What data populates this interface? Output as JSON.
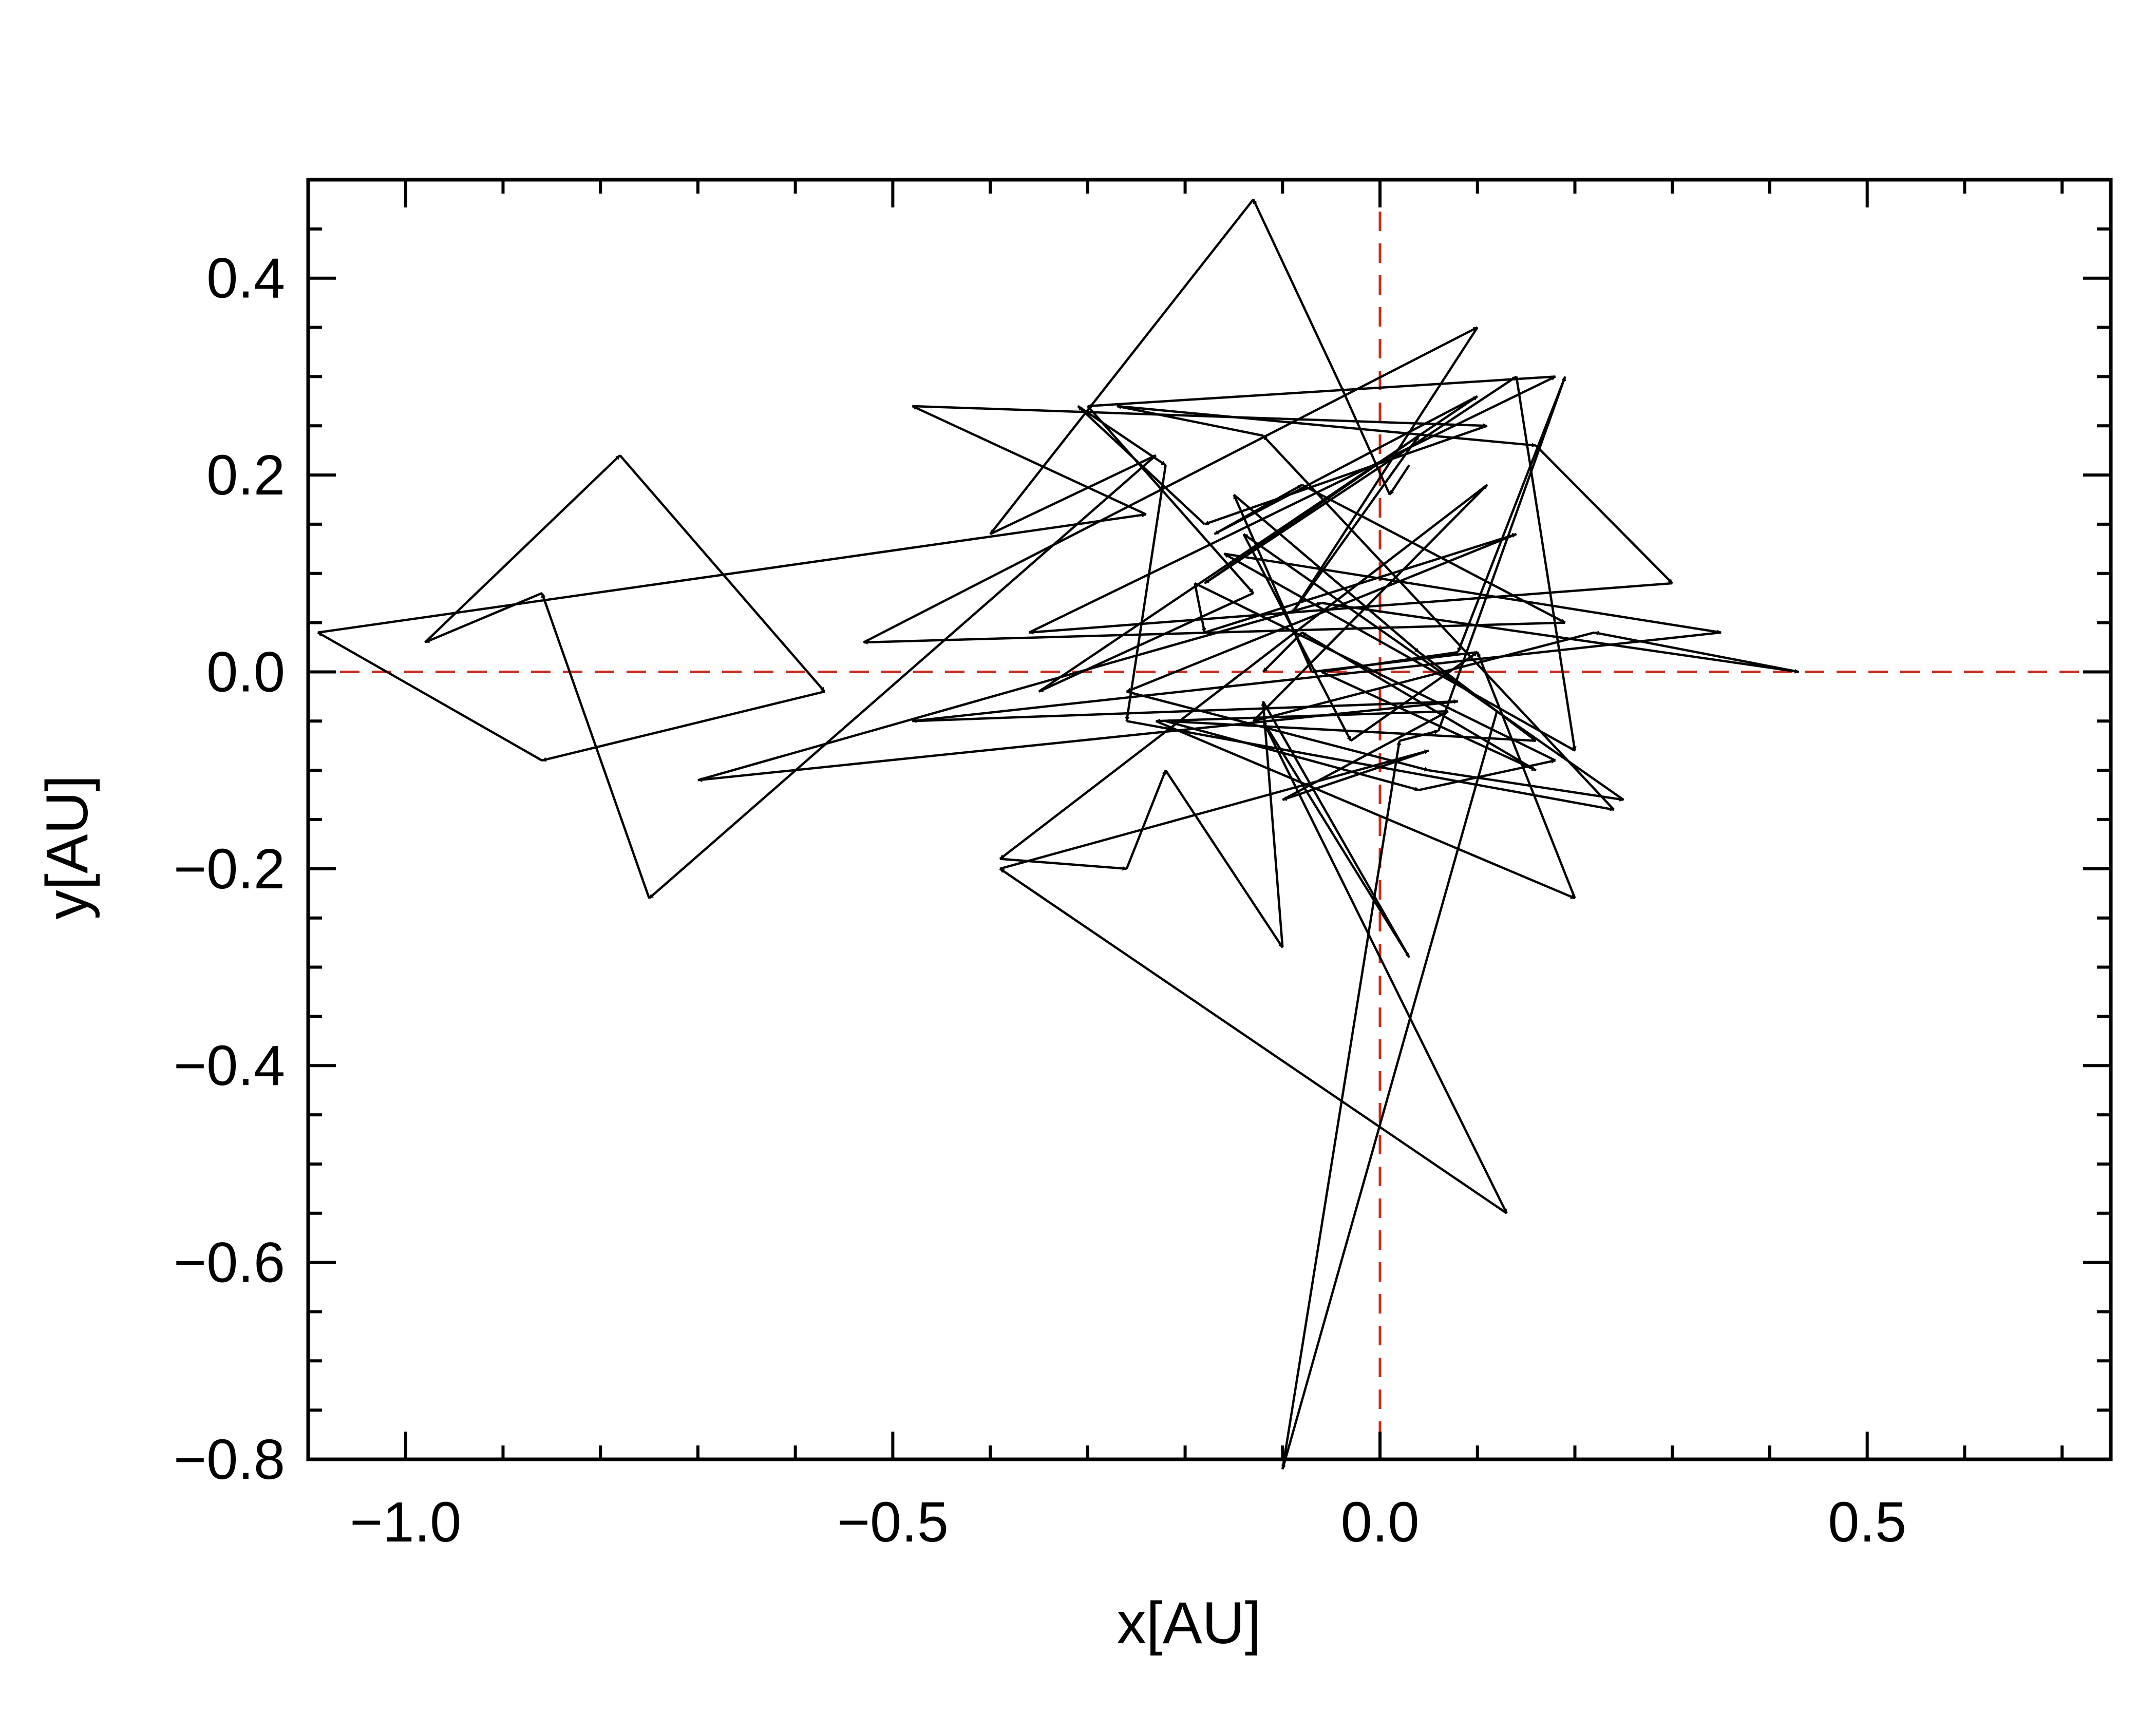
{
  "chart_data": {
    "type": "line",
    "title": "",
    "xlabel": "x[AU]",
    "ylabel": "y[AU]",
    "xlim": [
      -1.1,
      0.75
    ],
    "ylim": [
      -0.8,
      0.5
    ],
    "xticks": [
      -1.0,
      -0.5,
      0.0,
      0.5
    ],
    "xtick_labels": [
      "−1.0",
      "−0.5",
      "0.0",
      "0.5"
    ],
    "yticks": [
      -0.8,
      -0.6,
      -0.4,
      -0.2,
      0.0,
      0.2,
      0.4
    ],
    "ytick_labels": [
      "−0.8",
      "−0.6",
      "−0.4",
      "−0.2",
      "0.0",
      "0.2",
      "0.4"
    ],
    "grid": false,
    "reference_lines": [
      {
        "orientation": "vertical",
        "value": 0.0,
        "style": "dashed",
        "color": "#cc2a1c"
      },
      {
        "orientation": "horizontal",
        "value": 0.0,
        "style": "dashed",
        "color": "#cc2a1c"
      }
    ],
    "series": [
      {
        "color": "#000000",
        "style": "arrows",
        "x": [
          0.03,
          0.01,
          -0.04,
          -0.13,
          -0.4,
          -0.23,
          -0.75,
          -0.86,
          -0.98,
          -0.78,
          -0.57,
          -0.86,
          -1.09,
          -0.24,
          -0.48,
          0.11,
          -0.18,
          -0.31,
          -0.22,
          -0.26,
          0.24,
          -0.12,
          -0.27,
          0.16,
          0.3,
          -0.36,
          0.18,
          -0.3,
          -0.13,
          -0.35,
          0.1,
          -0.17,
          -0.08,
          0.19,
          -0.53,
          0.1,
          -0.09,
          0.04,
          -0.18,
          0.14,
          0.2,
          -0.16,
          0.35,
          -0.48,
          0.08,
          -0.7,
          -0.06,
          0.43,
          0.22,
          -0.13,
          0.11,
          -0.39,
          -0.26,
          -0.22,
          -0.1,
          -0.12,
          0.03,
          -0.12,
          0.13,
          -0.39,
          0.05,
          -0.1,
          0.07,
          -0.23,
          0.2,
          0.1,
          -0.07,
          -0.15,
          0.04,
          0.16,
          -0.22,
          0.04,
          0.18,
          -0.19,
          -0.18,
          0.14,
          -0.26,
          0.05,
          0.25,
          -0.14,
          -0.03,
          0.1
        ],
        "y": [
          0.21,
          0.18,
          0.29,
          0.48,
          0.14,
          0.22,
          -0.23,
          0.08,
          0.03,
          0.22,
          -0.02,
          -0.09,
          0.04,
          0.16,
          0.27,
          0.25,
          0.15,
          0.27,
          0.21,
          -0.05,
          -0.14,
          0.24,
          0.27,
          0.23,
          0.09,
          0.04,
          0.3,
          0.27,
          0.08,
          -0.02,
          0.28,
          0.14,
          0.19,
          0.05,
          0.03,
          0.35,
          0.06,
          0.24,
          0.09,
          0.3,
          -0.08,
          0.12,
          0.04,
          -0.05,
          -0.03,
          -0.11,
          0.07,
          0.0,
          0.04,
          -0.05,
          0.19,
          -0.19,
          -0.2,
          -0.1,
          -0.28,
          -0.03,
          -0.29,
          -0.05,
          -0.55,
          -0.2,
          -0.08,
          -0.13,
          -0.04,
          -0.05,
          -0.23,
          0.02,
          0.0,
          0.18,
          0.02,
          -0.07,
          -0.05,
          -0.12,
          -0.09,
          0.09,
          0.04,
          0.14,
          -0.02,
          -0.1,
          -0.13,
          0.14,
          -0.07,
          0.02
        ]
      },
      {
        "color": "#000000",
        "style": "arrows",
        "x": [
          0.12,
          -0.1,
          0.02,
          0.06,
          0.19,
          0.08,
          -0.06,
          0.16,
          -0.08,
          -0.12
        ],
        "y": [
          -0.04,
          -0.81,
          -0.07,
          -0.06,
          0.3,
          0.02,
          0.0,
          -0.1,
          0.04,
          0.0
        ]
      }
    ]
  }
}
